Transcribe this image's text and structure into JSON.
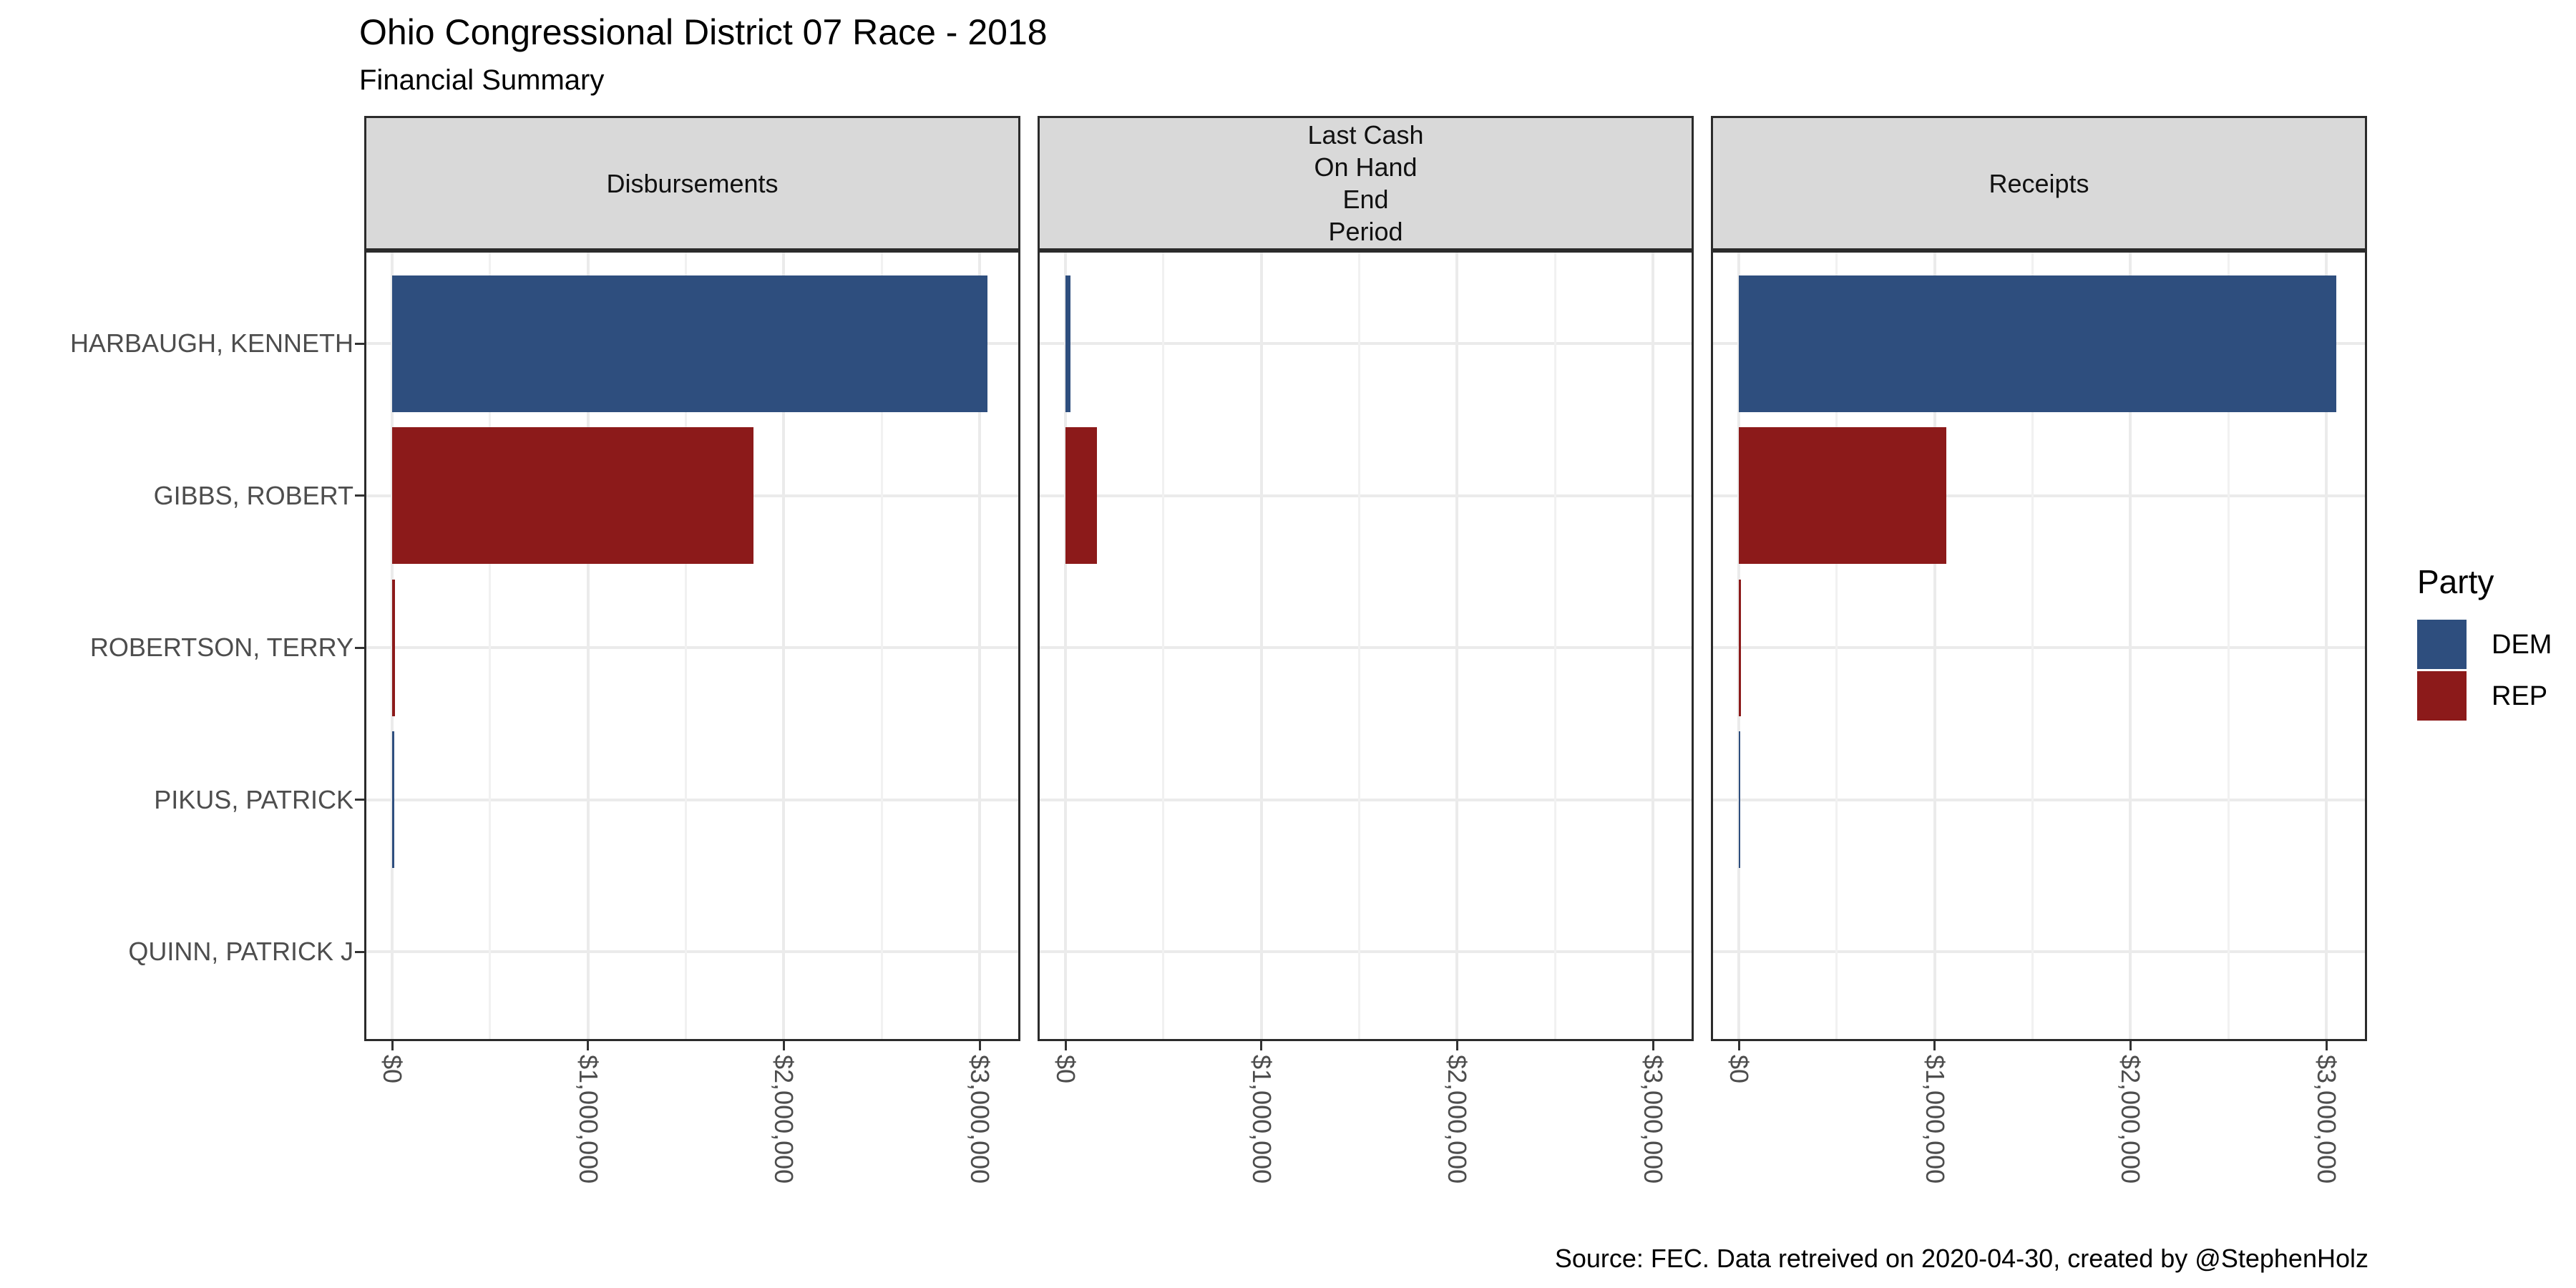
{
  "title": "Ohio Congressional District 07 Race - 2018",
  "subtitle": "Financial Summary",
  "caption": "Source: FEC. Data retreived on 2020-04-30, created by @StephenHolz",
  "legend": {
    "title": "Party",
    "entries": [
      {
        "label": "DEM",
        "color": "#2E4E7E"
      },
      {
        "label": "REP",
        "color": "#8C1A1A"
      }
    ]
  },
  "chart_data": {
    "type": "bar",
    "orientation": "horizontal",
    "title": "Ohio Congressional District 07 Race - 2018",
    "subtitle": "Financial Summary",
    "categories": [
      "HARBAUGH, KENNETH",
      "GIBBS, ROBERT",
      "ROBERTSON, TERRY",
      "PIKUS, PATRICK",
      "QUINN, PATRICK J"
    ],
    "category_parties": [
      "DEM",
      "REP",
      "REP",
      "DEM",
      null
    ],
    "party_colors": {
      "DEM": "#2E4E7E",
      "REP": "#8C1A1A"
    },
    "facets": [
      {
        "label": "Disbursements",
        "label_lines": [
          "Disbursements"
        ],
        "values": [
          3040000,
          1845000,
          15000,
          11000,
          0
        ]
      },
      {
        "label": "Last Cash On Hand End Period",
        "label_lines": [
          "Last Cash",
          "On Hand",
          "End",
          "Period"
        ],
        "values": [
          25000,
          160000,
          0,
          0,
          0
        ]
      },
      {
        "label": "Receipts",
        "label_lines": [
          "Receipts"
        ],
        "values": [
          3050000,
          1060000,
          10000,
          8000,
          0
        ]
      }
    ],
    "x_ticks": [
      {
        "label": "$0",
        "value": 0
      },
      {
        "label": "$1,000,000",
        "value": 1000000
      },
      {
        "label": "$2,000,000",
        "value": 2000000
      },
      {
        "label": "$3,000,000",
        "value": 3000000
      }
    ],
    "x_minor_ticks": [
      500000,
      1500000,
      2500000
    ],
    "xlim": [
      -142500,
      3208000
    ],
    "ylabel": "",
    "xlabel": "",
    "grid": true,
    "legend_position": "right"
  }
}
